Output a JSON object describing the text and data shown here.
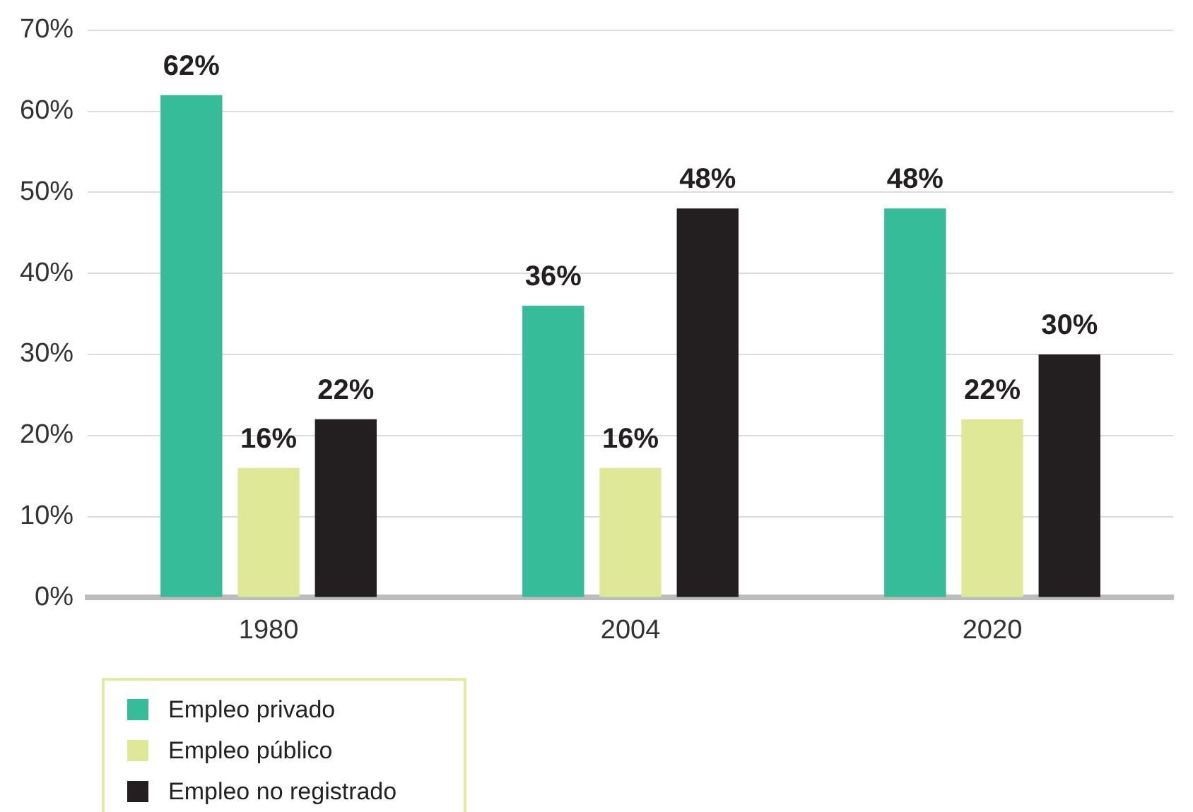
{
  "chart_data": {
    "type": "bar",
    "categories": [
      "1980",
      "2004",
      "2020"
    ],
    "series": [
      {
        "name": "Empleo privado",
        "color": "#36bc98",
        "values": [
          62,
          36,
          48
        ],
        "value_labels": [
          "62%",
          "36%",
          "48%"
        ]
      },
      {
        "name": "Empleo público",
        "color": "#dfe897",
        "values": [
          16,
          16,
          22
        ],
        "value_labels": [
          "16%",
          "16%",
          "22%"
        ]
      },
      {
        "name": "Empleo no registrado",
        "color": "#231f20",
        "values": [
          22,
          48,
          30
        ],
        "value_labels": [
          "22%",
          "48%",
          "30%"
        ]
      }
    ],
    "ylim": [
      0,
      70
    ],
    "yticks": [
      {
        "value": 0,
        "label": "0%"
      },
      {
        "value": 10,
        "label": "10%"
      },
      {
        "value": 20,
        "label": "20%"
      },
      {
        "value": 30,
        "label": "30%"
      },
      {
        "value": 40,
        "label": "40%"
      },
      {
        "value": 50,
        "label": "50%"
      },
      {
        "value": 60,
        "label": "60%"
      },
      {
        "value": 70,
        "label": "70%"
      }
    ],
    "grid": "y",
    "legend": "bottom left"
  }
}
